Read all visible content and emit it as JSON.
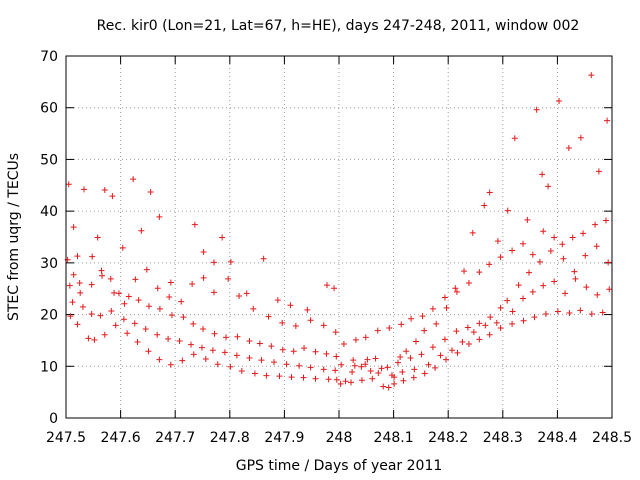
{
  "chart_data": {
    "type": "scatter",
    "title": "Rec. kir0 (Lon=21, Lat=67, h=HE), days 247-248, 2011, window 002",
    "xlabel": "GPS time / Days of year 2011",
    "ylabel": "STEC from uqrg / TECUs",
    "xlim": [
      247.5,
      248.5
    ],
    "ylim": [
      0,
      70
    ],
    "x_ticks": [
      "247.5",
      "247.6",
      "247.7",
      "247.8",
      "247.9",
      "248",
      "248.1",
      "248.2",
      "248.3",
      "248.4",
      "248.5"
    ],
    "y_ticks": [
      "0",
      "10",
      "20",
      "30",
      "40",
      "50",
      "60",
      "70"
    ],
    "grid": "dotted",
    "marker": "plus",
    "color": "#e41a1c",
    "legend": "none",
    "series": [
      {
        "points": [
          [
            247.505,
            45.2
          ],
          [
            247.514,
            36.9
          ],
          [
            247.521,
            31.3
          ],
          [
            247.533,
            44.2
          ],
          [
            247.558,
            34.9
          ],
          [
            247.571,
            44.1
          ],
          [
            247.585,
            42.9
          ],
          [
            247.604,
            32.9
          ],
          [
            247.623,
            46.2
          ],
          [
            247.638,
            36.2
          ],
          [
            247.655,
            43.7
          ],
          [
            247.671,
            38.9
          ],
          [
            247.692,
            26.2
          ],
          [
            247.736,
            37.4
          ],
          [
            247.752,
            32.1
          ],
          [
            247.771,
            30.1
          ],
          [
            247.786,
            34.9
          ],
          [
            247.802,
            30.2
          ],
          [
            247.831,
            24.1
          ],
          [
            247.862,
            30.8
          ],
          [
            247.888,
            22.8
          ],
          [
            247.911,
            21.8
          ],
          [
            247.942,
            20.9
          ],
          [
            247.978,
            25.7
          ],
          [
            247.991,
            25.1
          ],
          [
            247.503,
            30.6
          ],
          [
            247.514,
            27.7
          ],
          [
            247.526,
            24.2
          ],
          [
            247.547,
            25.8
          ],
          [
            247.565,
            28.5
          ],
          [
            247.582,
            26.9
          ],
          [
            247.597,
            24.1
          ],
          [
            247.615,
            23.5
          ],
          [
            247.633,
            22.8
          ],
          [
            247.652,
            21.6
          ],
          [
            247.672,
            21.1
          ],
          [
            247.694,
            19.9
          ],
          [
            247.715,
            19.5
          ],
          [
            247.733,
            18.2
          ],
          [
            247.751,
            17.2
          ],
          [
            247.772,
            16.3
          ],
          [
            247.793,
            15.6
          ],
          [
            247.814,
            15.7
          ],
          [
            247.836,
            14.9
          ],
          [
            247.855,
            14.4
          ],
          [
            247.876,
            13.9
          ],
          [
            247.897,
            13.2
          ],
          [
            247.917,
            12.9
          ],
          [
            247.936,
            13.5
          ],
          [
            247.957,
            12.8
          ],
          [
            247.977,
            12.4
          ],
          [
            247.995,
            11.9
          ],
          [
            247.508,
            19.7
          ],
          [
            247.521,
            18.1
          ],
          [
            247.541,
            15.4
          ],
          [
            247.552,
            15.1
          ],
          [
            247.571,
            16.1
          ],
          [
            247.591,
            17.9
          ],
          [
            247.612,
            16.4
          ],
          [
            247.631,
            14.7
          ],
          [
            247.651,
            12.9
          ],
          [
            247.671,
            11.3
          ],
          [
            247.692,
            10.3
          ],
          [
            247.713,
            11.1
          ],
          [
            247.734,
            12.3
          ],
          [
            247.756,
            11.4
          ],
          [
            247.778,
            10.4
          ],
          [
            247.801,
            9.9
          ],
          [
            247.822,
            9.1
          ],
          [
            247.846,
            8.6
          ],
          [
            247.867,
            8.2
          ],
          [
            247.891,
            8.1
          ],
          [
            247.913,
            7.9
          ],
          [
            247.935,
            7.8
          ],
          [
            247.957,
            7.6
          ],
          [
            247.981,
            7.5
          ],
          [
            247.996,
            7.4
          ],
          [
            247.507,
            25.6
          ],
          [
            247.525,
            26.1
          ],
          [
            247.548,
            31.2
          ],
          [
            247.566,
            27.5
          ],
          [
            247.588,
            24.2
          ],
          [
            247.607,
            22.1
          ],
          [
            247.627,
            26.8
          ],
          [
            247.648,
            28.7
          ],
          [
            247.668,
            25.1
          ],
          [
            247.689,
            23.4
          ],
          [
            247.711,
            22.5
          ],
          [
            247.731,
            25.9
          ],
          [
            247.752,
            27.1
          ],
          [
            247.771,
            24.3
          ],
          [
            247.797,
            26.9
          ],
          [
            247.817,
            23.6
          ],
          [
            247.843,
            21.1
          ],
          [
            247.871,
            19.6
          ],
          [
            247.896,
            18.4
          ],
          [
            247.921,
            17.8
          ],
          [
            247.948,
            18.9
          ],
          [
            247.972,
            17.9
          ],
          [
            247.994,
            16.6
          ],
          [
            247.512,
            22.4
          ],
          [
            247.531,
            21.5
          ],
          [
            247.547,
            20.1
          ],
          [
            247.563,
            19.8
          ],
          [
            247.583,
            20.7
          ],
          [
            247.606,
            19.1
          ],
          [
            247.626,
            18.3
          ],
          [
            247.646,
            17.2
          ],
          [
            247.667,
            16.1
          ],
          [
            247.687,
            15.3
          ],
          [
            247.708,
            14.9
          ],
          [
            247.729,
            14.2
          ],
          [
            247.749,
            13.6
          ],
          [
            247.769,
            13.1
          ],
          [
            247.791,
            12.7
          ],
          [
            247.813,
            12.1
          ],
          [
            247.836,
            11.6
          ],
          [
            247.858,
            11.2
          ],
          [
            247.881,
            10.8
          ],
          [
            247.904,
            10.4
          ],
          [
            247.927,
            10.1
          ],
          [
            247.948,
            9.8
          ],
          [
            247.972,
            9.4
          ],
          [
            247.993,
            9.2
          ],
          [
            248.012,
            7.1
          ],
          [
            248.024,
            8.9
          ],
          [
            248.041,
            9.9
          ],
          [
            248.052,
            11.3
          ],
          [
            248.072,
            8.7
          ],
          [
            248.091,
            5.9
          ],
          [
            248.101,
            7.9
          ],
          [
            248.112,
            11.8
          ],
          [
            248.123,
            12.9
          ],
          [
            248.141,
            14.8
          ],
          [
            248.156,
            16.9
          ],
          [
            248.178,
            18.2
          ],
          [
            248.197,
            21.3
          ],
          [
            248.213,
            25.1
          ],
          [
            248.229,
            28.4
          ],
          [
            248.245,
            35.8
          ],
          [
            248.266,
            41.1
          ],
          [
            248.276,
            43.6
          ],
          [
            248.291,
            34.2
          ],
          [
            248.309,
            40.1
          ],
          [
            248.322,
            54.1
          ],
          [
            248.345,
            38.3
          ],
          [
            248.362,
            59.6
          ],
          [
            248.372,
            47.1
          ],
          [
            248.383,
            44.8
          ],
          [
            248.403,
            61.3
          ],
          [
            248.421,
            52.2
          ],
          [
            248.443,
            54.2
          ],
          [
            248.462,
            66.3
          ],
          [
            248.476,
            47.7
          ],
          [
            248.491,
            57.5
          ],
          [
            248.009,
            14.3
          ],
          [
            248.031,
            15.1
          ],
          [
            248.049,
            15.6
          ],
          [
            248.071,
            16.9
          ],
          [
            248.092,
            17.4
          ],
          [
            248.114,
            18.1
          ],
          [
            248.132,
            19.2
          ],
          [
            248.153,
            19.7
          ],
          [
            248.172,
            21.1
          ],
          [
            248.194,
            23.3
          ],
          [
            248.216,
            24.4
          ],
          [
            248.238,
            26.1
          ],
          [
            248.257,
            28.2
          ],
          [
            248.275,
            29.7
          ],
          [
            248.296,
            31.1
          ],
          [
            248.317,
            32.4
          ],
          [
            248.337,
            33.7
          ],
          [
            248.355,
            31.6
          ],
          [
            248.374,
            36.1
          ],
          [
            248.394,
            34.9
          ],
          [
            248.411,
            30.8
          ],
          [
            248.431,
            28.3
          ],
          [
            248.451,
            31.4
          ],
          [
            248.472,
            33.2
          ],
          [
            248.493,
            30.1
          ],
          [
            248.004,
            10.3
          ],
          [
            248.026,
            11.2
          ],
          [
            248.048,
            10.4
          ],
          [
            248.067,
            11.5
          ],
          [
            248.089,
            9.8
          ],
          [
            248.108,
            10.7
          ],
          [
            248.131,
            11.6
          ],
          [
            248.151,
            12.3
          ],
          [
            248.172,
            13.7
          ],
          [
            248.194,
            15.2
          ],
          [
            248.215,
            16.8
          ],
          [
            248.236,
            17.5
          ],
          [
            248.257,
            18.3
          ],
          [
            248.277,
            19.5
          ],
          [
            248.296,
            21.3
          ],
          [
            248.318,
            20.6
          ],
          [
            248.337,
            23.1
          ],
          [
            248.355,
            24.4
          ],
          [
            248.374,
            25.6
          ],
          [
            248.394,
            26.4
          ],
          [
            248.414,
            24.1
          ],
          [
            248.433,
            26.9
          ],
          [
            248.453,
            25.3
          ],
          [
            248.473,
            23.8
          ],
          [
            248.495,
            24.9
          ],
          [
            248.003,
            6.6
          ],
          [
            248.022,
            6.9
          ],
          [
            248.042,
            7.3
          ],
          [
            248.061,
            7.6
          ],
          [
            248.081,
            6.1
          ],
          [
            248.101,
            6.6
          ],
          [
            248.118,
            7.2
          ],
          [
            248.137,
            7.8
          ],
          [
            248.157,
            8.6
          ],
          [
            248.176,
            9.7
          ],
          [
            248.196,
            11.3
          ],
          [
            248.217,
            12.6
          ],
          [
            248.238,
            14.3
          ],
          [
            248.257,
            15.2
          ],
          [
            248.276,
            16.1
          ],
          [
            248.296,
            17.4
          ],
          [
            248.317,
            18.2
          ],
          [
            248.338,
            18.8
          ],
          [
            248.358,
            19.5
          ],
          [
            248.379,
            20.1
          ],
          [
            248.401,
            20.6
          ],
          [
            248.422,
            20.3
          ],
          [
            248.442,
            20.8
          ],
          [
            248.463,
            20.1
          ],
          [
            248.483,
            20.4
          ],
          [
            248.029,
            10.1
          ],
          [
            248.058,
            9.1
          ],
          [
            248.078,
            9.6
          ],
          [
            248.097,
            8.3
          ],
          [
            248.116,
            8.9
          ],
          [
            248.138,
            9.4
          ],
          [
            248.164,
            10.3
          ],
          [
            248.186,
            12.1
          ],
          [
            248.207,
            13.1
          ],
          [
            248.226,
            14.7
          ],
          [
            248.247,
            16.6
          ],
          [
            248.268,
            17.9
          ],
          [
            248.289,
            18.4
          ],
          [
            248.308,
            22.7
          ],
          [
            248.329,
            25.7
          ],
          [
            248.348,
            28.1
          ],
          [
            248.368,
            30.2
          ],
          [
            248.388,
            32.3
          ],
          [
            248.409,
            33.6
          ],
          [
            248.428,
            34.9
          ],
          [
            248.447,
            35.7
          ],
          [
            248.469,
            37.4
          ],
          [
            248.489,
            38.2
          ]
        ]
      }
    ]
  }
}
